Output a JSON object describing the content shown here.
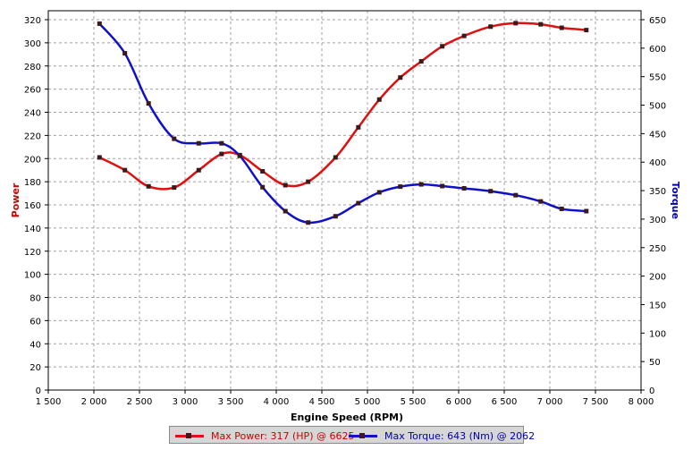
{
  "chart_data": {
    "type": "line",
    "xlabel": "Engine Speed (RPM)",
    "ylabel_left": "Power",
    "ylabel_right": "Torque",
    "xlim": [
      1500,
      8000
    ],
    "ylim_left": [
      0,
      320
    ],
    "ylim_right": [
      0,
      650
    ],
    "x_ticks": [
      "1 500",
      "2 000",
      "2 500",
      "3 000",
      "3 500",
      "4 000",
      "4 500",
      "5 000",
      "5 500",
      "6 000",
      "6 500",
      "7 000",
      "7 500",
      "8 000"
    ],
    "y_left_ticks": [
      "0",
      "20",
      "40",
      "60",
      "80",
      "100",
      "120",
      "140",
      "160",
      "180",
      "200",
      "220",
      "240",
      "260",
      "280",
      "300",
      "320"
    ],
    "y_right_ticks": [
      "0",
      "50",
      "100",
      "150",
      "200",
      "250",
      "300",
      "350",
      "400",
      "450",
      "500",
      "550",
      "600",
      "650"
    ],
    "grid": true,
    "series": [
      {
        "name": "Max Power: 317 (HP) @ 6625",
        "axis": "left",
        "color": "#e01010",
        "x": [
          2062,
          2340,
          2600,
          2880,
          3150,
          3400,
          3600,
          3850,
          4100,
          4350,
          4650,
          4900,
          5130,
          5360,
          5590,
          5820,
          6060,
          6350,
          6625,
          6900,
          7130,
          7400
        ],
        "values": [
          201,
          190,
          176,
          175,
          190,
          204,
          203,
          189,
          177,
          180,
          201,
          227,
          251,
          270,
          284,
          297,
          306,
          314,
          317,
          316,
          313,
          311
        ]
      },
      {
        "name": "Max Torque: 643 (Nm) @ 2062",
        "axis": "right",
        "color": "#1010c8",
        "x": [
          2062,
          2340,
          2600,
          2880,
          3150,
          3400,
          3600,
          3850,
          4100,
          4350,
          4650,
          4900,
          5130,
          5360,
          5590,
          5820,
          6060,
          6350,
          6625,
          6900,
          7130,
          7400
        ],
        "values": [
          643,
          591,
          503,
          441,
          433,
          433,
          411,
          356,
          314,
          294,
          305,
          328,
          347,
          357,
          361,
          358,
          354,
          349,
          342,
          331,
          318,
          314
        ]
      }
    ]
  },
  "colors": {
    "power": "#e01010",
    "torque": "#1010c8",
    "grid": "#a0a0a0",
    "marker": "#3a1a1a"
  }
}
